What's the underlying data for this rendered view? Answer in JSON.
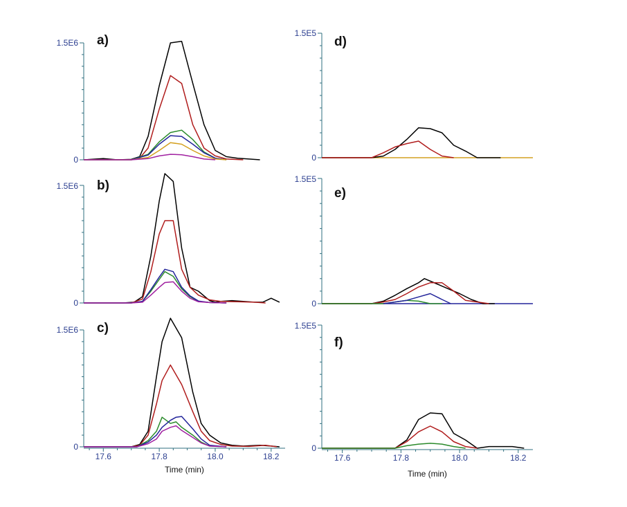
{
  "chart_data": [
    {
      "type": "line",
      "panel_label": "a)",
      "ymax_label": "1.5E6",
      "yzero_label": "0",
      "ylim": [
        0,
        1500000
      ],
      "xlim": [
        17.53,
        18.25
      ],
      "xticks": [],
      "xlabel": "",
      "series": [
        {
          "name": "black",
          "color": "#000000",
          "x": [
            17.53,
            17.6,
            17.65,
            17.7,
            17.73,
            17.76,
            17.8,
            17.84,
            17.88,
            17.92,
            17.96,
            18.0,
            18.04,
            18.08,
            18.12,
            18.16
          ],
          "y": [
            0,
            15000,
            0,
            5000,
            40000,
            300000,
            950000,
            1500000,
            1520000,
            980000,
            450000,
            120000,
            40000,
            20000,
            10000,
            0
          ]
        },
        {
          "name": "red",
          "color": "#b01c1c",
          "x": [
            17.53,
            17.7,
            17.73,
            17.76,
            17.8,
            17.84,
            17.88,
            17.92,
            17.96,
            18.0,
            18.04,
            18.1
          ],
          "y": [
            0,
            0,
            20000,
            150000,
            650000,
            1080000,
            980000,
            450000,
            150000,
            50000,
            10000,
            0
          ]
        },
        {
          "name": "green",
          "color": "#2a8a2a",
          "x": [
            17.53,
            17.7,
            17.76,
            17.8,
            17.84,
            17.88,
            17.92,
            17.96,
            18.0,
            18.04
          ],
          "y": [
            0,
            0,
            70000,
            230000,
            350000,
            380000,
            260000,
            100000,
            20000,
            0
          ]
        },
        {
          "name": "blue",
          "color": "#22249a",
          "x": [
            17.53,
            17.7,
            17.76,
            17.8,
            17.84,
            17.88,
            17.92,
            17.96,
            18.0,
            18.04
          ],
          "y": [
            0,
            0,
            60000,
            200000,
            310000,
            300000,
            200000,
            90000,
            20000,
            0
          ]
        },
        {
          "name": "orange",
          "color": "#d4a020",
          "x": [
            17.53,
            17.7,
            17.76,
            17.8,
            17.84,
            17.88,
            17.92,
            17.96,
            18.0,
            18.04
          ],
          "y": [
            0,
            0,
            30000,
            120000,
            220000,
            200000,
            120000,
            50000,
            10000,
            0
          ]
        },
        {
          "name": "magenta",
          "color": "#a020a0",
          "x": [
            17.53,
            17.7,
            17.76,
            17.8,
            17.84,
            17.88,
            17.92,
            17.96,
            18.0
          ],
          "y": [
            0,
            0,
            15000,
            50000,
            70000,
            65000,
            40000,
            10000,
            0
          ]
        }
      ]
    },
    {
      "type": "line",
      "panel_label": "b)",
      "ymax_label": "1.5E6",
      "yzero_label": "0",
      "ylim": [
        0,
        1500000
      ],
      "xlim": [
        17.53,
        18.25
      ],
      "xticks": [],
      "xlabel": "",
      "series": [
        {
          "name": "black",
          "color": "#000000",
          "x": [
            17.53,
            17.67,
            17.71,
            17.74,
            17.77,
            17.8,
            17.82,
            17.85,
            17.88,
            17.91,
            17.94,
            17.98,
            18.0,
            18.02,
            18.06,
            18.1,
            18.14,
            18.17,
            18.2,
            18.23
          ],
          "y": [
            0,
            0,
            10000,
            80000,
            600000,
            1300000,
            1650000,
            1550000,
            700000,
            200000,
            150000,
            30000,
            10000,
            20000,
            30000,
            20000,
            10000,
            10000,
            60000,
            10000
          ]
        },
        {
          "name": "red",
          "color": "#b01c1c",
          "x": [
            17.53,
            17.7,
            17.74,
            17.77,
            17.8,
            17.82,
            17.85,
            17.88,
            17.91,
            17.94,
            17.98,
            18.02,
            18.08,
            18.14,
            18.18
          ],
          "y": [
            0,
            0,
            50000,
            400000,
            880000,
            1050000,
            1050000,
            430000,
            200000,
            100000,
            40000,
            20000,
            15000,
            10000,
            0
          ]
        },
        {
          "name": "green",
          "color": "#2a8a2a",
          "x": [
            17.53,
            17.7,
            17.74,
            17.77,
            17.8,
            17.82,
            17.85,
            17.88,
            17.91,
            17.94,
            17.98,
            18.04
          ],
          "y": [
            0,
            0,
            20000,
            150000,
            300000,
            400000,
            340000,
            180000,
            80000,
            20000,
            5000,
            0
          ]
        },
        {
          "name": "blue",
          "color": "#22249a",
          "x": [
            17.53,
            17.7,
            17.74,
            17.77,
            17.8,
            17.82,
            17.85,
            17.88,
            17.91,
            17.94,
            17.98,
            18.04
          ],
          "y": [
            0,
            0,
            20000,
            170000,
            330000,
            430000,
            400000,
            200000,
            90000,
            25000,
            5000,
            0
          ]
        },
        {
          "name": "magenta",
          "color": "#a020a0",
          "x": [
            17.53,
            17.7,
            17.74,
            17.77,
            17.8,
            17.82,
            17.85,
            17.88,
            17.91,
            17.94,
            17.98,
            18.04
          ],
          "y": [
            0,
            0,
            10000,
            100000,
            200000,
            260000,
            270000,
            150000,
            60000,
            15000,
            5000,
            0
          ]
        }
      ]
    },
    {
      "type": "line",
      "panel_label": "c)",
      "ymax_label": "1.5E6",
      "yzero_label": "0",
      "ylim": [
        0,
        1500000
      ],
      "xlim": [
        17.53,
        18.25
      ],
      "xticks": [
        17.6,
        17.8,
        18.0,
        18.2
      ],
      "xtick_labels": [
        "17.6",
        "17.8",
        "18.0",
        "18.2"
      ],
      "xlabel": "Time (min)",
      "series": [
        {
          "name": "black",
          "color": "#000000",
          "x": [
            17.53,
            17.7,
            17.73,
            17.76,
            17.79,
            17.81,
            17.84,
            17.88,
            17.92,
            17.95,
            17.98,
            18.02,
            18.06,
            18.1,
            18.16,
            18.2,
            18.23
          ],
          "y": [
            0,
            0,
            30000,
            200000,
            900000,
            1350000,
            1650000,
            1400000,
            700000,
            300000,
            150000,
            50000,
            20000,
            10000,
            20000,
            10000,
            0
          ]
        },
        {
          "name": "red",
          "color": "#b01c1c",
          "x": [
            17.53,
            17.7,
            17.73,
            17.76,
            17.79,
            17.81,
            17.84,
            17.88,
            17.92,
            17.95,
            17.98,
            18.02,
            18.06,
            18.12,
            18.18,
            18.22
          ],
          "y": [
            0,
            0,
            20000,
            150000,
            550000,
            850000,
            1050000,
            800000,
            450000,
            200000,
            80000,
            30000,
            10000,
            5000,
            20000,
            0
          ]
        },
        {
          "name": "green",
          "color": "#2a8a2a",
          "x": [
            17.53,
            17.72,
            17.76,
            17.79,
            17.81,
            17.84,
            17.86,
            17.88,
            17.92,
            17.95,
            17.98,
            18.04
          ],
          "y": [
            0,
            0,
            80000,
            200000,
            380000,
            300000,
            320000,
            250000,
            150000,
            60000,
            10000,
            0
          ]
        },
        {
          "name": "blue",
          "color": "#22249a",
          "x": [
            17.53,
            17.72,
            17.76,
            17.79,
            17.81,
            17.84,
            17.86,
            17.88,
            17.92,
            17.95,
            17.98,
            18.04
          ],
          "y": [
            0,
            0,
            60000,
            150000,
            250000,
            340000,
            380000,
            390000,
            230000,
            100000,
            20000,
            0
          ]
        },
        {
          "name": "magenta",
          "color": "#a020a0",
          "x": [
            17.53,
            17.72,
            17.76,
            17.79,
            17.81,
            17.84,
            17.86,
            17.88,
            17.92,
            17.95,
            17.98,
            18.04
          ],
          "y": [
            0,
            0,
            40000,
            100000,
            200000,
            250000,
            270000,
            210000,
            120000,
            50000,
            10000,
            0
          ]
        }
      ]
    },
    {
      "type": "line",
      "panel_label": "d)",
      "ymax_label": "1.5E5",
      "yzero_label": "0",
      "ylim": [
        0,
        150000
      ],
      "xlim": [
        17.53,
        18.25
      ],
      "xticks": [],
      "xlabel": "",
      "series": [
        {
          "name": "orange",
          "color": "#d4a020",
          "x": [
            17.53,
            18.25
          ],
          "y": [
            0,
            0
          ]
        },
        {
          "name": "black",
          "color": "#000000",
          "x": [
            17.53,
            17.7,
            17.74,
            17.78,
            17.82,
            17.86,
            17.9,
            17.94,
            17.98,
            18.02,
            18.06,
            18.1,
            18.14
          ],
          "y": [
            0,
            0,
            2000,
            10000,
            22000,
            36000,
            35000,
            30000,
            15000,
            8000,
            0,
            0,
            0
          ]
        },
        {
          "name": "red",
          "color": "#b01c1c",
          "x": [
            17.53,
            17.7,
            17.74,
            17.78,
            17.82,
            17.86,
            17.9,
            17.94,
            17.98
          ],
          "y": [
            0,
            0,
            6000,
            13000,
            17000,
            20000,
            10000,
            2000,
            0
          ]
        }
      ]
    },
    {
      "type": "line",
      "panel_label": "e)",
      "ymax_label": "1.5E5",
      "yzero_label": "0",
      "ylim": [
        0,
        150000
      ],
      "xlim": [
        17.53,
        18.25
      ],
      "xticks": [],
      "xlabel": "",
      "series": [
        {
          "name": "blue",
          "color": "#22249a",
          "x": [
            17.53,
            18.25
          ],
          "y": [
            0,
            0
          ]
        },
        {
          "name": "black",
          "color": "#000000",
          "x": [
            17.53,
            17.7,
            17.74,
            17.78,
            17.82,
            17.86,
            17.88,
            17.92,
            17.96,
            18.0,
            18.04,
            18.08,
            18.12
          ],
          "y": [
            0,
            0,
            3000,
            10000,
            18000,
            25000,
            30000,
            24000,
            18000,
            12000,
            5000,
            0,
            0
          ]
        },
        {
          "name": "red",
          "color": "#b01c1c",
          "x": [
            17.53,
            17.7,
            17.74,
            17.78,
            17.82,
            17.86,
            17.9,
            17.94,
            17.98,
            18.02,
            18.06,
            18.1
          ],
          "y": [
            0,
            0,
            2000,
            5000,
            12000,
            20000,
            25000,
            25000,
            15000,
            4000,
            2000,
            0
          ]
        },
        {
          "name": "green",
          "color": "#2a8a2a",
          "x": [
            17.53,
            17.74,
            17.78,
            17.82,
            17.86,
            17.9,
            17.94
          ],
          "y": [
            0,
            0,
            2000,
            4000,
            3000,
            0,
            0
          ]
        },
        {
          "name": "blue-peak",
          "color": "#22249a",
          "x": [
            17.74,
            17.78,
            17.82,
            17.86,
            17.9,
            17.94,
            17.97
          ],
          "y": [
            0,
            2000,
            4000,
            8000,
            12000,
            5000,
            0
          ]
        }
      ]
    },
    {
      "type": "line",
      "panel_label": "f)",
      "ymax_label": "1.5E5",
      "yzero_label": "0",
      "ylim": [
        0,
        150000
      ],
      "xlim": [
        17.53,
        18.25
      ],
      "xticks": [
        17.6,
        17.8,
        18.0,
        18.2
      ],
      "xtick_labels": [
        "17.6",
        "17.8",
        "18.0",
        "18.2"
      ],
      "xlabel": "Time (min)",
      "series": [
        {
          "name": "black",
          "color": "#000000",
          "x": [
            17.53,
            17.78,
            17.82,
            17.86,
            17.9,
            17.94,
            17.98,
            18.02,
            18.06,
            18.1,
            18.14,
            18.18,
            18.22
          ],
          "y": [
            0,
            0,
            10000,
            35000,
            43000,
            42000,
            18000,
            10000,
            0,
            2000,
            2000,
            2000,
            0
          ]
        },
        {
          "name": "red",
          "color": "#b01c1c",
          "x": [
            17.53,
            17.78,
            17.82,
            17.86,
            17.9,
            17.94,
            17.98,
            18.02,
            18.06
          ],
          "y": [
            0,
            0,
            8000,
            20000,
            27000,
            20000,
            8000,
            2000,
            0
          ]
        },
        {
          "name": "green",
          "color": "#2a8a2a",
          "x": [
            17.53,
            17.78,
            17.82,
            17.86,
            17.9,
            17.94,
            17.98,
            18.02
          ],
          "y": [
            0,
            0,
            3000,
            5000,
            6000,
            5000,
            2000,
            0
          ]
        }
      ]
    }
  ]
}
